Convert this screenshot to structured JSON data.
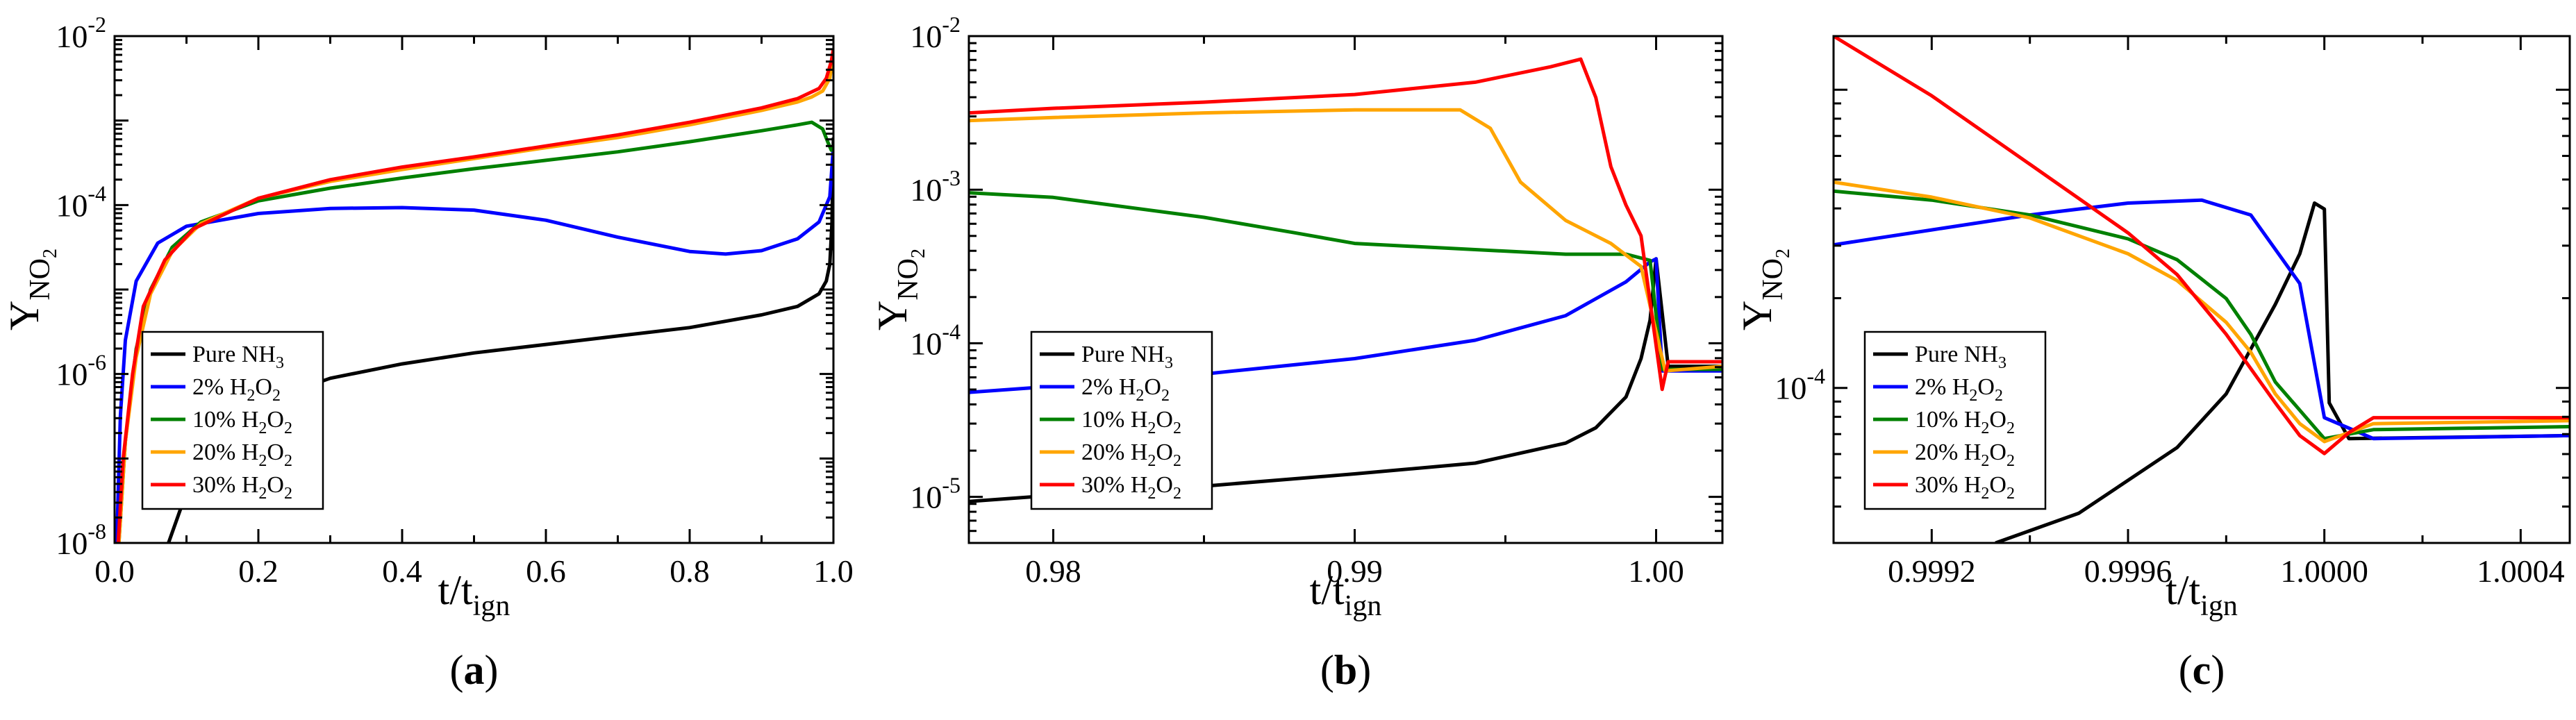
{
  "figure": {
    "description_labels": [
      "(a)",
      "(b)",
      "(c)"
    ]
  },
  "colors": {
    "pure": "#000000",
    "h2o2_2": "#0000ff",
    "h2o2_10": "#008000",
    "h2o2_20": "#ffa500",
    "h2o2_30": "#ff0000"
  },
  "legend": [
    {
      "key": "pure",
      "prefix": "Pure NH",
      "sub1": "3",
      "mid": "",
      "sub2": ""
    },
    {
      "key": "h2o2_2",
      "prefix": "  2% H",
      "sub1": "2",
      "mid": "O",
      "sub2": "2"
    },
    {
      "key": "h2o2_10",
      "prefix": "10% H",
      "sub1": "2",
      "mid": "O",
      "sub2": "2"
    },
    {
      "key": "h2o2_20",
      "prefix": "20% H",
      "sub1": "2",
      "mid": "O",
      "sub2": "2"
    },
    {
      "key": "h2o2_30",
      "prefix": "30% H",
      "sub1": "2",
      "mid": "O",
      "sub2": "2"
    }
  ],
  "chart_data": [
    {
      "panel": "(a)",
      "type": "line",
      "xlabel": "t/t",
      "xlabel_sub": "ign",
      "ylabel": "Y",
      "ylabel_sub": "NO2",
      "yscale": "log",
      "xlim": [
        0.0,
        1.0
      ],
      "ylim_log10": [
        -8,
        -2
      ],
      "xticks": [
        0.0,
        0.2,
        0.4,
        0.6,
        0.8,
        1.0
      ],
      "xtick_labels": [
        "0.0",
        "0.2",
        "0.4",
        "0.6",
        "0.8",
        "1.0"
      ],
      "ytick_exps": [
        -8,
        -6,
        -4,
        -2
      ],
      "ytick_bases": [
        "10",
        "10",
        "10",
        "10"
      ],
      "ytick_exp_labels": [
        "-8",
        "-6",
        "-4",
        "-2"
      ],
      "series": [
        {
          "key": "pure",
          "points": [
            [
              0.075,
              -8.0
            ],
            [
              0.1,
              -7.4
            ],
            [
              0.15,
              -6.7
            ],
            [
              0.2,
              -6.35
            ],
            [
              0.3,
              -6.05
            ],
            [
              0.4,
              -5.88
            ],
            [
              0.5,
              -5.75
            ],
            [
              0.6,
              -5.65
            ],
            [
              0.7,
              -5.55
            ],
            [
              0.8,
              -5.45
            ],
            [
              0.9,
              -5.3
            ],
            [
              0.95,
              -5.2
            ],
            [
              0.98,
              -5.05
            ],
            [
              0.99,
              -4.9
            ],
            [
              0.995,
              -4.7
            ],
            [
              0.998,
              -4.2
            ],
            [
              1.0,
              -3.2
            ]
          ]
        },
        {
          "key": "h2o2_2",
          "points": [
            [
              0.003,
              -8.0
            ],
            [
              0.008,
              -6.5
            ],
            [
              0.015,
              -5.6
            ],
            [
              0.03,
              -4.9
            ],
            [
              0.06,
              -4.45
            ],
            [
              0.1,
              -4.25
            ],
            [
              0.2,
              -4.1
            ],
            [
              0.3,
              -4.04
            ],
            [
              0.4,
              -4.03
            ],
            [
              0.5,
              -4.06
            ],
            [
              0.6,
              -4.18
            ],
            [
              0.7,
              -4.38
            ],
            [
              0.8,
              -4.55
            ],
            [
              0.85,
              -4.58
            ],
            [
              0.9,
              -4.54
            ],
            [
              0.95,
              -4.4
            ],
            [
              0.98,
              -4.2
            ],
            [
              0.995,
              -3.9
            ],
            [
              1.0,
              -3.3
            ]
          ]
        },
        {
          "key": "h2o2_10",
          "points": [
            [
              0.006,
              -8.0
            ],
            [
              0.015,
              -6.8
            ],
            [
              0.03,
              -5.7
            ],
            [
              0.05,
              -5.0
            ],
            [
              0.08,
              -4.5
            ],
            [
              0.12,
              -4.2
            ],
            [
              0.2,
              -3.95
            ],
            [
              0.3,
              -3.8
            ],
            [
              0.4,
              -3.68
            ],
            [
              0.5,
              -3.57
            ],
            [
              0.6,
              -3.47
            ],
            [
              0.7,
              -3.37
            ],
            [
              0.8,
              -3.25
            ],
            [
              0.9,
              -3.12
            ],
            [
              0.95,
              -3.05
            ],
            [
              0.97,
              -3.02
            ],
            [
              0.985,
              -3.1
            ],
            [
              0.992,
              -3.25
            ],
            [
              0.997,
              -3.35
            ],
            [
              1.0,
              -3.3
            ]
          ]
        },
        {
          "key": "h2o2_20",
          "points": [
            [
              0.006,
              -8.0
            ],
            [
              0.015,
              -6.8
            ],
            [
              0.03,
              -5.8
            ],
            [
              0.05,
              -5.05
            ],
            [
              0.08,
              -4.55
            ],
            [
              0.12,
              -4.22
            ],
            [
              0.2,
              -3.92
            ],
            [
              0.3,
              -3.72
            ],
            [
              0.4,
              -3.58
            ],
            [
              0.5,
              -3.45
            ],
            [
              0.6,
              -3.32
            ],
            [
              0.7,
              -3.2
            ],
            [
              0.8,
              -3.05
            ],
            [
              0.9,
              -2.88
            ],
            [
              0.95,
              -2.78
            ],
            [
              0.97,
              -2.72
            ],
            [
              0.985,
              -2.65
            ],
            [
              0.995,
              -2.5
            ],
            [
              1.0,
              -2.2
            ]
          ]
        },
        {
          "key": "h2o2_30",
          "points": [
            [
              0.005,
              -8.0
            ],
            [
              0.012,
              -7.0
            ],
            [
              0.025,
              -6.0
            ],
            [
              0.04,
              -5.2
            ],
            [
              0.07,
              -4.65
            ],
            [
              0.11,
              -4.28
            ],
            [
              0.2,
              -3.92
            ],
            [
              0.3,
              -3.7
            ],
            [
              0.4,
              -3.55
            ],
            [
              0.5,
              -3.43
            ],
            [
              0.6,
              -3.3
            ],
            [
              0.7,
              -3.17
            ],
            [
              0.8,
              -3.02
            ],
            [
              0.9,
              -2.85
            ],
            [
              0.95,
              -2.74
            ],
            [
              0.98,
              -2.62
            ],
            [
              0.99,
              -2.5
            ],
            [
              0.997,
              -2.3
            ],
            [
              1.0,
              -2.15
            ]
          ]
        }
      ]
    },
    {
      "panel": "(b)",
      "type": "line",
      "xlabel": "t/t",
      "xlabel_sub": "ign",
      "ylabel": "Y",
      "ylabel_sub": "NO2",
      "yscale": "log",
      "xlim": [
        0.9772,
        1.0022
      ],
      "ylim_log10": [
        -5.3,
        -2.0
      ],
      "xticks": [
        0.98,
        0.99,
        1.0
      ],
      "xtick_labels": [
        "0.98",
        "0.99",
        "1.00"
      ],
      "ytick_exps": [
        -5,
        -4,
        -3,
        -2
      ],
      "ytick_bases": [
        "10",
        "10",
        "10",
        "10"
      ],
      "ytick_exp_labels": [
        "-5",
        "-4",
        "-3",
        "-2"
      ],
      "series": [
        {
          "key": "pure",
          "points": [
            [
              0.9772,
              -5.03
            ],
            [
              0.98,
              -4.99
            ],
            [
              0.985,
              -4.93
            ],
            [
              0.99,
              -4.85
            ],
            [
              0.994,
              -4.78
            ],
            [
              0.997,
              -4.65
            ],
            [
              0.998,
              -4.55
            ],
            [
              0.999,
              -4.35
            ],
            [
              0.9995,
              -4.1
            ],
            [
              0.9998,
              -3.85
            ],
            [
              1.0,
              -3.45
            ],
            [
              1.0004,
              -4.15
            ],
            [
              1.0022,
              -4.15
            ]
          ]
        },
        {
          "key": "h2o2_2",
          "points": [
            [
              0.9772,
              -4.32
            ],
            [
              0.98,
              -4.28
            ],
            [
              0.985,
              -4.2
            ],
            [
              0.99,
              -4.1
            ],
            [
              0.994,
              -3.98
            ],
            [
              0.997,
              -3.82
            ],
            [
              0.999,
              -3.6
            ],
            [
              0.9998,
              -3.47
            ],
            [
              1.0,
              -3.45
            ],
            [
              1.0002,
              -4.18
            ],
            [
              1.0022,
              -4.18
            ]
          ]
        },
        {
          "key": "h2o2_10",
          "points": [
            [
              0.9772,
              -3.02
            ],
            [
              0.98,
              -3.05
            ],
            [
              0.985,
              -3.18
            ],
            [
              0.988,
              -3.28
            ],
            [
              0.99,
              -3.35
            ],
            [
              0.993,
              -3.38
            ],
            [
              0.997,
              -3.42
            ],
            [
              0.999,
              -3.42
            ],
            [
              0.9998,
              -3.46
            ],
            [
              1.0002,
              -4.17
            ],
            [
              1.0022,
              -4.17
            ]
          ]
        },
        {
          "key": "h2o2_20",
          "points": [
            [
              0.9772,
              -2.55
            ],
            [
              0.98,
              -2.53
            ],
            [
              0.985,
              -2.5
            ],
            [
              0.99,
              -2.48
            ],
            [
              0.9935,
              -2.48
            ],
            [
              0.9945,
              -2.6
            ],
            [
              0.9955,
              -2.95
            ],
            [
              0.997,
              -3.2
            ],
            [
              0.9985,
              -3.35
            ],
            [
              0.9995,
              -3.5
            ],
            [
              1.0003,
              -4.18
            ],
            [
              1.0022,
              -4.15
            ]
          ]
        },
        {
          "key": "h2o2_30",
          "points": [
            [
              0.9772,
              -2.5
            ],
            [
              0.98,
              -2.47
            ],
            [
              0.985,
              -2.43
            ],
            [
              0.99,
              -2.38
            ],
            [
              0.994,
              -2.3
            ],
            [
              0.9965,
              -2.2
            ],
            [
              0.9975,
              -2.15
            ],
            [
              0.998,
              -2.4
            ],
            [
              0.9985,
              -2.85
            ],
            [
              0.999,
              -3.1
            ],
            [
              0.9995,
              -3.3
            ],
            [
              1.0002,
              -4.3
            ],
            [
              1.0004,
              -4.12
            ],
            [
              1.0022,
              -4.12
            ]
          ]
        }
      ]
    },
    {
      "panel": "(c)",
      "type": "line",
      "xlabel": "t/t",
      "xlabel_sub": "ign",
      "ylabel": "Y",
      "ylabel_sub": "NO2",
      "yscale": "log",
      "xlim": [
        0.999,
        1.0005
      ],
      "ylim_log10": [
        -4.52,
        -2.82
      ],
      "xticks": [
        0.9992,
        0.9996,
        1.0,
        1.0004
      ],
      "xtick_labels": [
        "0.9992",
        "0.9996",
        "1.0000",
        "1.0004"
      ],
      "ytick_exps": [
        -4
      ],
      "ytick_bases": [
        "10"
      ],
      "ytick_exp_labels": [
        "-4"
      ],
      "series": [
        {
          "key": "pure",
          "points": [
            [
              0.99933,
              -4.52
            ],
            [
              0.9995,
              -4.42
            ],
            [
              0.9997,
              -4.2
            ],
            [
              0.9998,
              -4.02
            ],
            [
              0.9999,
              -3.72
            ],
            [
              0.99995,
              -3.55
            ],
            [
              0.99998,
              -3.38
            ],
            [
              1.0,
              -3.4
            ],
            [
              1.00001,
              -4.05
            ],
            [
              1.00005,
              -4.17
            ],
            [
              1.0005,
              -4.16
            ]
          ]
        },
        {
          "key": "h2o2_2",
          "points": [
            [
              0.999,
              -3.52
            ],
            [
              0.9992,
              -3.47
            ],
            [
              0.9994,
              -3.42
            ],
            [
              0.9996,
              -3.38
            ],
            [
              0.99975,
              -3.37
            ],
            [
              0.99985,
              -3.42
            ],
            [
              0.99995,
              -3.65
            ],
            [
              1.0,
              -4.1
            ],
            [
              1.0001,
              -4.17
            ],
            [
              1.0005,
              -4.16
            ]
          ]
        },
        {
          "key": "h2o2_10",
          "points": [
            [
              0.999,
              -3.34
            ],
            [
              0.9992,
              -3.37
            ],
            [
              0.9994,
              -3.42
            ],
            [
              0.9996,
              -3.5
            ],
            [
              0.9997,
              -3.57
            ],
            [
              0.9998,
              -3.7
            ],
            [
              0.99985,
              -3.82
            ],
            [
              0.9999,
              -3.98
            ],
            [
              1.0,
              -4.17
            ],
            [
              1.0001,
              -4.14
            ],
            [
              1.0005,
              -4.13
            ]
          ]
        },
        {
          "key": "h2o2_20",
          "points": [
            [
              0.999,
              -3.31
            ],
            [
              0.9992,
              -3.36
            ],
            [
              0.9994,
              -3.43
            ],
            [
              0.9996,
              -3.55
            ],
            [
              0.9997,
              -3.64
            ],
            [
              0.9998,
              -3.78
            ],
            [
              0.99985,
              -3.88
            ],
            [
              0.9999,
              -4.02
            ],
            [
              0.99995,
              -4.12
            ],
            [
              1.0,
              -4.18
            ],
            [
              1.0001,
              -4.12
            ],
            [
              1.0005,
              -4.11
            ]
          ]
        },
        {
          "key": "h2o2_30",
          "points": [
            [
              0.999,
              -2.82
            ],
            [
              0.9992,
              -3.02
            ],
            [
              0.9994,
              -3.25
            ],
            [
              0.9996,
              -3.48
            ],
            [
              0.9997,
              -3.62
            ],
            [
              0.9998,
              -3.82
            ],
            [
              0.9999,
              -4.05
            ],
            [
              0.99995,
              -4.16
            ],
            [
              1.0,
              -4.22
            ],
            [
              1.00005,
              -4.15
            ],
            [
              1.0001,
              -4.1
            ],
            [
              1.0005,
              -4.1
            ]
          ]
        }
      ]
    }
  ]
}
